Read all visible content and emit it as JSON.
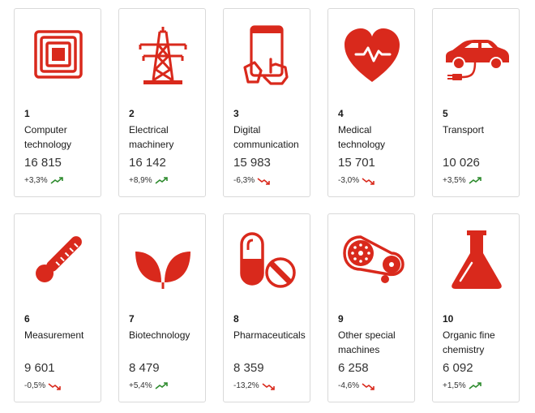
{
  "colors": {
    "accent": "#d9291c",
    "up": "#2e8b2e",
    "down": "#d9291c",
    "border": "#d9d9d9"
  },
  "cards": [
    {
      "rank": "1",
      "label": "Computer technology",
      "value": "16 815",
      "change": "+3,3%",
      "trend": "up",
      "icon": "rfid-chip-icon"
    },
    {
      "rank": "2",
      "label": "Electrical machinery",
      "value": "16 142",
      "change": "+8,9%",
      "trend": "up",
      "icon": "power-pylon-icon"
    },
    {
      "rank": "3",
      "label": "Digital communication",
      "value": "15 983",
      "change": "-6,3%",
      "trend": "down",
      "icon": "tablet-hand-icon"
    },
    {
      "rank": "4",
      "label": "Medical technology",
      "value": "15 701",
      "change": "-3,0%",
      "trend": "down",
      "icon": "heart-pulse-icon"
    },
    {
      "rank": "5",
      "label": "Transport",
      "value": "10 026",
      "change": "+3,5%",
      "trend": "up",
      "icon": "electric-car-icon"
    },
    {
      "rank": "6",
      "label": "Measurement",
      "value": "9 601",
      "change": "-0,5%",
      "trend": "down",
      "icon": "thermometer-icon"
    },
    {
      "rank": "7",
      "label": "Biotechnology",
      "value": "8 479",
      "change": "+5,4%",
      "trend": "up",
      "icon": "leaves-icon"
    },
    {
      "rank": "8",
      "label": "Pharmaceuticals",
      "value": "8 359",
      "change": "-13,2%",
      "trend": "down",
      "icon": "pills-icon"
    },
    {
      "rank": "9",
      "label": "Other special machines",
      "value": "6 258",
      "change": "-4,6%",
      "trend": "down",
      "icon": "gear-belt-icon"
    },
    {
      "rank": "10",
      "label": "Organic fine chemistry",
      "value": "6 092",
      "change": "+1,5%",
      "trend": "up",
      "icon": "flask-icon"
    }
  ]
}
